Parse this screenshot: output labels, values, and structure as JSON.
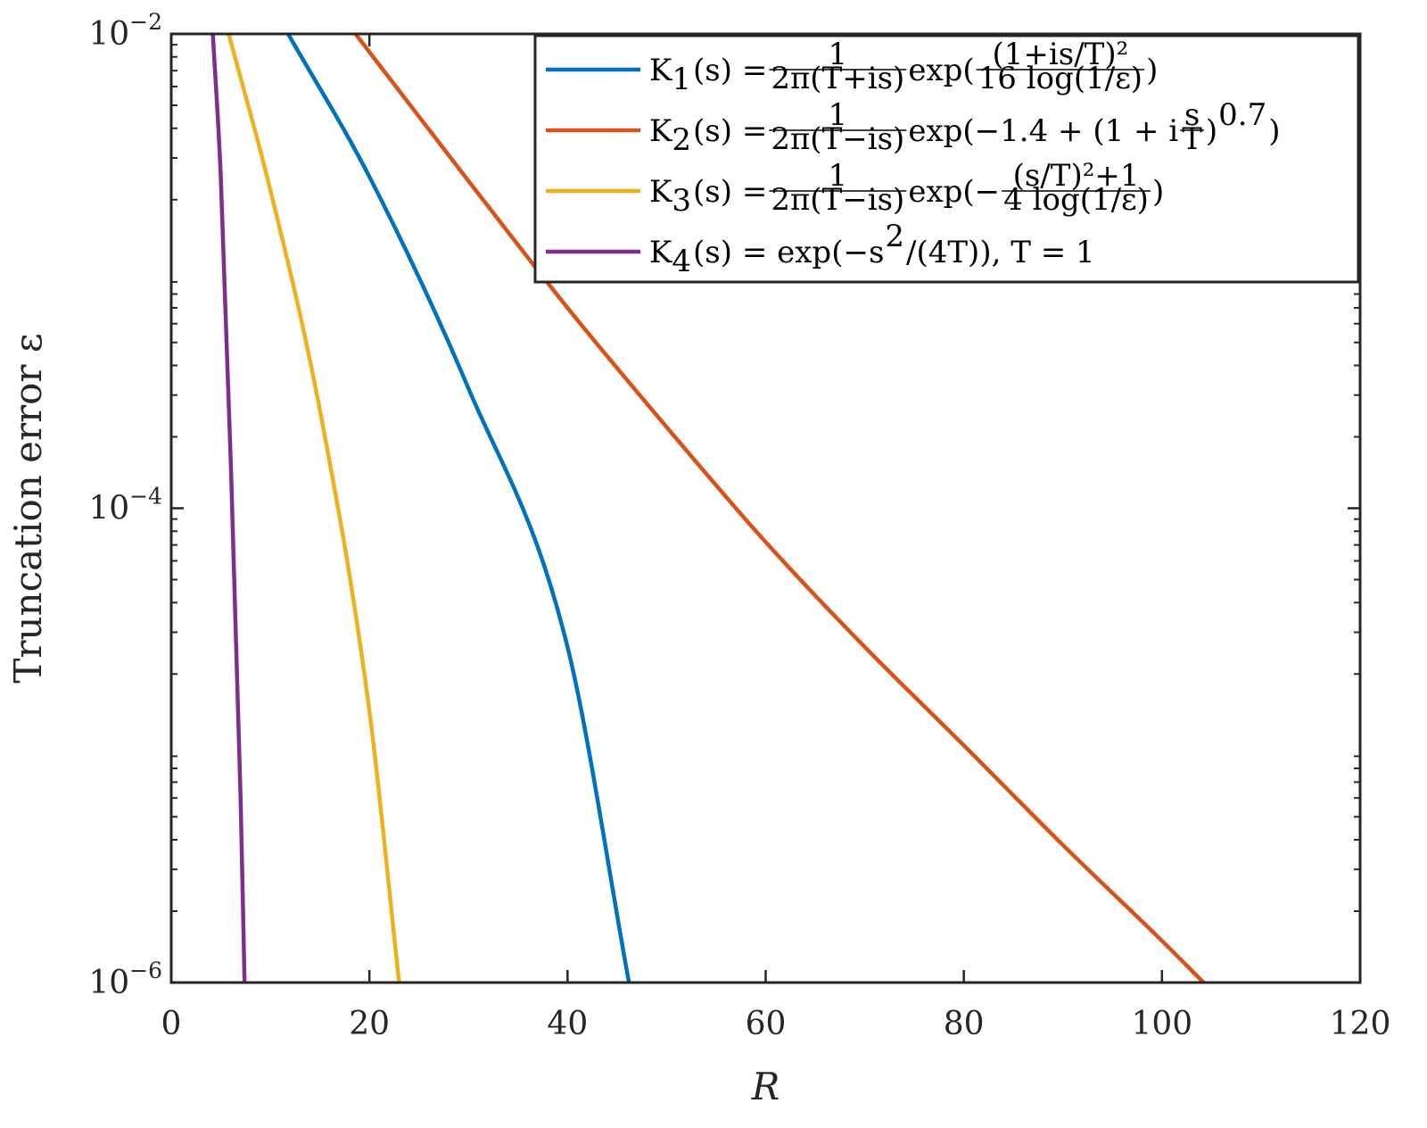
{
  "chart_data": {
    "type": "line",
    "xlabel": "R",
    "ylabel": "Truncation error ε",
    "xlim": [
      0,
      120
    ],
    "ylim": [
      1e-06,
      0.01
    ],
    "yscale": "log",
    "grid": false,
    "legend_position": "top-right",
    "x_ticks": [
      0,
      20,
      40,
      60,
      80,
      100,
      120
    ],
    "x_tick_labels": [
      "0",
      "20",
      "40",
      "60",
      "80",
      "100",
      "120"
    ],
    "y_ticks": [
      1e-06,
      0.0001,
      0.01
    ],
    "y_tick_labels": [
      {
        "base": "10",
        "exp": "−6"
      },
      {
        "base": "10",
        "exp": "−4"
      },
      {
        "base": "10",
        "exp": "−2"
      }
    ],
    "series": [
      {
        "name": "K1(s) = 1/(2π(T+is)) exp((1+is/T)^2 / (16 log(1/ε)))",
        "color": "#0072BD",
        "points": [
          [
            11.8,
            0.01
          ],
          [
            20,
            0.0025
          ],
          [
            30,
            0.00032
          ],
          [
            40,
            2.6e-05
          ],
          [
            46.2,
            1e-06
          ]
        ]
      },
      {
        "name": "K2(s) = 1/(2π(T−is)) exp(−1.4 + (1 + i s/T)^0.7)",
        "color": "#D95319",
        "points": [
          [
            18.6,
            0.01
          ],
          [
            30,
            0.0024
          ],
          [
            40,
            0.0007
          ],
          [
            50,
            0.00022
          ],
          [
            60,
            7.2e-05
          ],
          [
            70,
            2.6e-05
          ],
          [
            80,
            1e-05
          ],
          [
            90,
            3.8e-06
          ],
          [
            100,
            1.5e-06
          ],
          [
            104.2,
            1e-06
          ]
        ]
      },
      {
        "name": "K3(s) = 1/(2π(T−is)) exp(−((s/T)^2+1) / (4 log(1/ε)))",
        "color": "#EDB120",
        "points": [
          [
            5.8,
            0.01
          ],
          [
            10,
            0.0022
          ],
          [
            15,
            0.00026
          ],
          [
            20,
            1.4e-05
          ],
          [
            23,
            1e-06
          ]
        ]
      },
      {
        "name": "K4(s) = exp(−s^2/(4T)), T = 1",
        "color": "#7E2F8E",
        "points": [
          [
            4.2,
            0.01
          ],
          [
            5,
            0.0025
          ],
          [
            6,
            0.00016
          ],
          [
            7,
            6e-06
          ],
          [
            7.4,
            1e-06
          ]
        ]
      }
    ],
    "legend": [
      {
        "color": "#0072BD",
        "parts": [
          {
            "t": "K"
          },
          {
            "sub": "1"
          },
          {
            "t": "(s) = "
          },
          {
            "num": "1",
            "den": "2π(T+is)"
          },
          {
            "t": " exp("
          },
          {
            "num": "(1+is/T)²",
            "den": "16 log(1/ε)"
          },
          {
            "t": ")"
          }
        ]
      },
      {
        "color": "#D95319",
        "parts": [
          {
            "t": "K"
          },
          {
            "sub": "2"
          },
          {
            "t": "(s) = "
          },
          {
            "num": "1",
            "den": "2π(T−is)"
          },
          {
            "t": " exp(−1.4 + (1 + i"
          },
          {
            "num": "s",
            "den": "T"
          },
          {
            "t": ")"
          },
          {
            "sup": "0.7"
          },
          {
            "t": ")"
          }
        ]
      },
      {
        "color": "#EDB120",
        "parts": [
          {
            "t": "K"
          },
          {
            "sub": "3"
          },
          {
            "t": "(s) = "
          },
          {
            "num": "1",
            "den": "2π(T−is)"
          },
          {
            "t": " exp(− "
          },
          {
            "num": "(s/T)²+1",
            "den": "4 log(1/ε)"
          },
          {
            "t": ")"
          }
        ]
      },
      {
        "color": "#7E2F8E",
        "parts": [
          {
            "t": "K"
          },
          {
            "sub": "4"
          },
          {
            "t": "(s) = exp(−s"
          },
          {
            "sup": "2"
          },
          {
            "t": "/(4T)), T = 1"
          }
        ]
      }
    ]
  }
}
